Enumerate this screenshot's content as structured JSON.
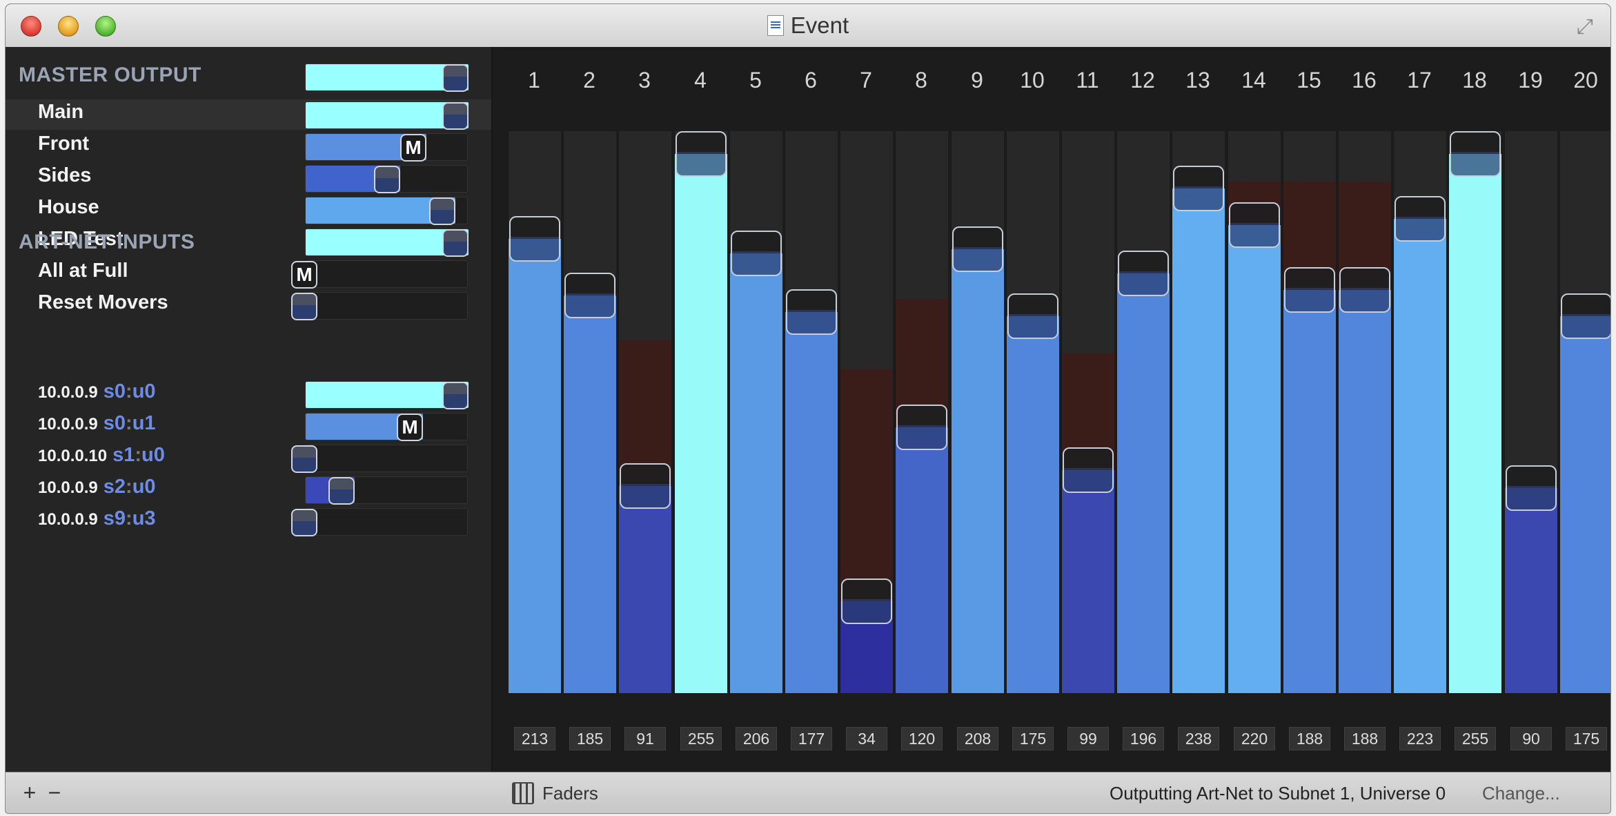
{
  "window": {
    "title": "Event"
  },
  "master_output": {
    "heading": "MASTER OUTPUT",
    "level": 1.0,
    "color": "#99ffff",
    "rows": [
      {
        "label": "Main",
        "level": 1.0,
        "color": "#99ffff",
        "knob": "slider",
        "selected": true
      },
      {
        "label": "Front",
        "level": 0.74,
        "color": "#5b8fe0",
        "knob": "M",
        "selected": false
      },
      {
        "label": "Sides",
        "level": 0.58,
        "color": "#4064cc",
        "knob": "slider",
        "selected": false
      },
      {
        "label": "House",
        "level": 0.92,
        "color": "#60a8ee",
        "knob": "slider",
        "selected": false
      },
      {
        "label": "LED Test",
        "level": 1.0,
        "color": "#99ffff",
        "knob": "slider",
        "selected": false
      },
      {
        "label": "All at Full",
        "level": 0.0,
        "color": "#4064cc",
        "knob": "M",
        "selected": false
      },
      {
        "label": "Reset Movers",
        "level": 0.0,
        "color": "#4064cc",
        "knob": "slider",
        "selected": false
      }
    ]
  },
  "artnet_inputs": {
    "heading": "ART-NET INPUTS",
    "rows": [
      {
        "ip": "10.0.0.9",
        "s": "s0",
        "u": "u0",
        "level": 1.0,
        "color": "#99ffff",
        "knob": "slider"
      },
      {
        "ip": "10.0.0.9",
        "s": "s0",
        "u": "u1",
        "level": 0.72,
        "color": "#5b8fe0",
        "knob": "M"
      },
      {
        "ip": "10.0.0.10",
        "s": "s1",
        "u": "u0",
        "level": 0.0,
        "color": "#4064cc",
        "knob": "slider"
      },
      {
        "ip": "10.0.0.9",
        "s": "s2",
        "u": "u0",
        "level": 0.3,
        "color": "#3a48b8",
        "knob": "slider"
      },
      {
        "ip": "10.0.0.9",
        "s": "s9",
        "u": "u3",
        "level": 0.0,
        "color": "#4064cc",
        "knob": "slider"
      }
    ]
  },
  "channels": [
    {
      "num": "1",
      "value": "213",
      "red": 0
    },
    {
      "num": "2",
      "value": "185",
      "red": 0
    },
    {
      "num": "3",
      "value": "91",
      "red": 160
    },
    {
      "num": "4",
      "value": "255",
      "red": 0
    },
    {
      "num": "5",
      "value": "206",
      "red": 0
    },
    {
      "num": "6",
      "value": "177",
      "red": 0
    },
    {
      "num": "7",
      "value": "34",
      "red": 147
    },
    {
      "num": "8",
      "value": "120",
      "red": 179
    },
    {
      "num": "9",
      "value": "208",
      "red": 0
    },
    {
      "num": "10",
      "value": "175",
      "red": 0
    },
    {
      "num": "11",
      "value": "99",
      "red": 154
    },
    {
      "num": "12",
      "value": "196",
      "red": 0
    },
    {
      "num": "13",
      "value": "238",
      "red": 0
    },
    {
      "num": "14",
      "value": "220",
      "red": 232
    },
    {
      "num": "15",
      "value": "188",
      "red": 232
    },
    {
      "num": "16",
      "value": "188",
      "red": 232
    },
    {
      "num": "17",
      "value": "223",
      "red": 0
    },
    {
      "num": "18",
      "value": "255",
      "red": 0
    },
    {
      "num": "19",
      "value": "90",
      "red": 0
    },
    {
      "num": "20",
      "value": "175",
      "red": 0
    }
  ],
  "bottom": {
    "add_label": "+",
    "remove_label": "−",
    "faders_label": "Faders",
    "status": "Outputting Art-Net to Subnet 1, Universe 0",
    "change_label": "Change..."
  }
}
